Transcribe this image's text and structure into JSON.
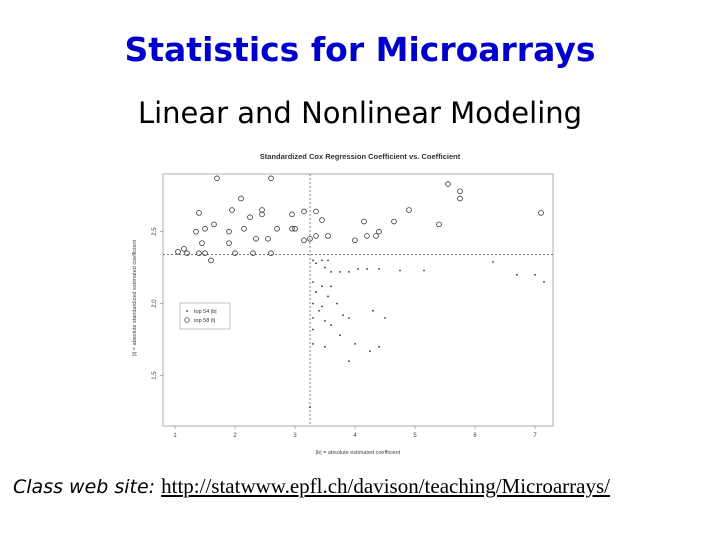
{
  "slide": {
    "title": "Statistics for Microarrays",
    "subtitle": "Linear and Nonlinear Modeling",
    "footer_label": "Class web site:",
    "footer_url": "http://statwww.epfl.ch/davison/teaching/Microarrays/"
  },
  "chart_data": {
    "type": "scatter",
    "title": "Standardized Cox Regression Coefficient vs. Coefficient",
    "xlabel": "|b| = absolute estimated coefficient",
    "ylabel": "|t| = absolute standardized estimated coefficient",
    "xlim": [
      0.8,
      7.3
    ],
    "ylim": [
      1.15,
      2.9
    ],
    "xticks": [
      1,
      2,
      3,
      4,
      5,
      6,
      7
    ],
    "yticks": [
      1.5,
      2.0,
      2.5
    ],
    "ref_lines": {
      "x": 3.25,
      "y": 2.34
    },
    "legend": {
      "position": "middle-left",
      "entries": [
        "top 54 |b|",
        "top 58 |t|"
      ]
    },
    "grid": false,
    "series": [
      {
        "name": "top 54 |b|",
        "marker": "dot",
        "points": [
          [
            3.3,
            2.3
          ],
          [
            3.45,
            2.3
          ],
          [
            3.5,
            2.25
          ],
          [
            3.6,
            2.22
          ],
          [
            3.75,
            2.22
          ],
          [
            3.9,
            2.22
          ],
          [
            4.05,
            2.24
          ],
          [
            4.2,
            2.24
          ],
          [
            4.4,
            2.24
          ],
          [
            4.75,
            2.23
          ],
          [
            5.15,
            2.23
          ],
          [
            6.3,
            2.29
          ],
          [
            6.7,
            2.2
          ],
          [
            7.0,
            2.2
          ],
          [
            7.15,
            2.15
          ],
          [
            3.3,
            2.15
          ],
          [
            3.45,
            2.12
          ],
          [
            3.6,
            2.12
          ],
          [
            3.35,
            2.08
          ],
          [
            3.55,
            2.05
          ],
          [
            3.3,
            2.0
          ],
          [
            3.45,
            1.98
          ],
          [
            3.7,
            2.0
          ],
          [
            3.4,
            1.95
          ],
          [
            3.8,
            1.92
          ],
          [
            3.3,
            1.9
          ],
          [
            3.5,
            1.88
          ],
          [
            3.6,
            1.85
          ],
          [
            3.3,
            1.82
          ],
          [
            3.75,
            1.78
          ],
          [
            3.9,
            1.9
          ],
          [
            4.3,
            1.95
          ],
          [
            4.5,
            1.9
          ],
          [
            3.3,
            1.72
          ],
          [
            3.5,
            1.7
          ],
          [
            4.0,
            1.72
          ],
          [
            4.25,
            1.67
          ],
          [
            4.4,
            1.7
          ],
          [
            3.9,
            1.6
          ],
          [
            3.25,
            1.28
          ],
          [
            3.35,
            2.28
          ],
          [
            3.55,
            2.3
          ]
        ]
      },
      {
        "name": "top 58 |t|",
        "marker": "circle",
        "points": [
          [
            1.7,
            2.87
          ],
          [
            2.6,
            2.87
          ],
          [
            1.4,
            2.63
          ],
          [
            1.95,
            2.65
          ],
          [
            2.1,
            2.73
          ],
          [
            1.35,
            2.5
          ],
          [
            1.5,
            2.52
          ],
          [
            1.65,
            2.55
          ],
          [
            1.9,
            2.5
          ],
          [
            2.15,
            2.52
          ],
          [
            1.45,
            2.42
          ],
          [
            1.9,
            2.42
          ],
          [
            2.25,
            2.6
          ],
          [
            2.45,
            2.65
          ],
          [
            2.45,
            2.62
          ],
          [
            2.7,
            2.52
          ],
          [
            2.95,
            2.52
          ],
          [
            2.95,
            2.62
          ],
          [
            3.0,
            2.52
          ],
          [
            2.35,
            2.45
          ],
          [
            2.55,
            2.45
          ],
          [
            2.0,
            2.35
          ],
          [
            2.3,
            2.35
          ],
          [
            2.6,
            2.35
          ],
          [
            1.5,
            2.35
          ],
          [
            1.2,
            2.35
          ],
          [
            1.4,
            2.35
          ],
          [
            1.15,
            2.38
          ],
          [
            1.05,
            2.36
          ],
          [
            3.15,
            2.64
          ],
          [
            3.35,
            2.64
          ],
          [
            3.45,
            2.58
          ],
          [
            3.25,
            2.45
          ],
          [
            3.35,
            2.47
          ],
          [
            3.55,
            2.47
          ],
          [
            4.15,
            2.57
          ],
          [
            4.0,
            2.44
          ],
          [
            4.2,
            2.47
          ],
          [
            4.4,
            2.5
          ],
          [
            4.35,
            2.47
          ],
          [
            4.65,
            2.57
          ],
          [
            4.9,
            2.65
          ],
          [
            5.4,
            2.55
          ],
          [
            5.55,
            2.83
          ],
          [
            5.75,
            2.78
          ],
          [
            5.75,
            2.73
          ],
          [
            7.1,
            2.63
          ],
          [
            3.15,
            2.44
          ],
          [
            1.6,
            2.3
          ]
        ]
      }
    ]
  }
}
